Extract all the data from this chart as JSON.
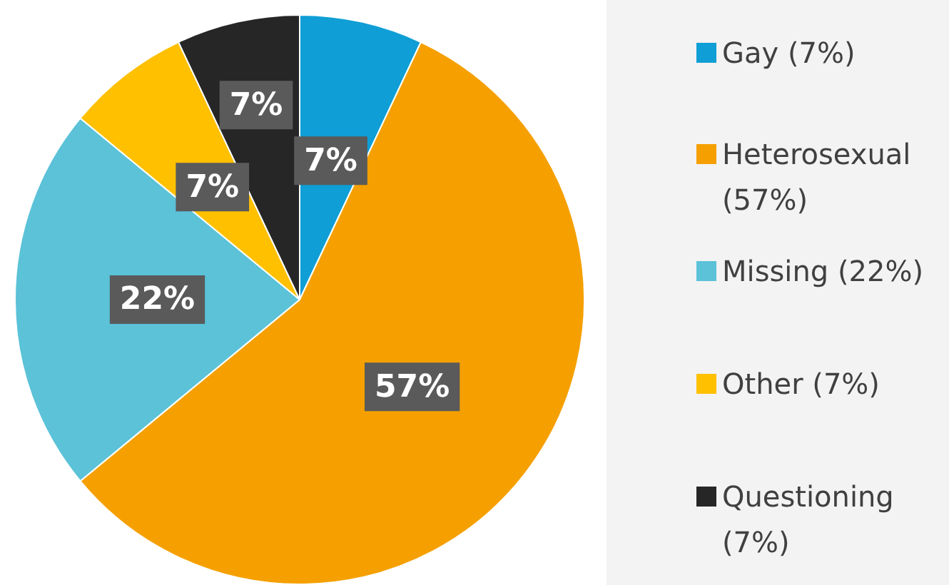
{
  "chart_data": {
    "type": "pie",
    "categories": [
      "Gay (7%)",
      "Heterosexual (57%)",
      "Missing (22%)",
      "Other (7%)",
      "Questioning (7%)"
    ],
    "values": [
      7,
      57,
      22,
      7,
      7
    ],
    "colors": [
      "#0f9ed5",
      "#f5a000",
      "#5bc2d8",
      "#ffc000",
      "#262626"
    ],
    "value_labels": [
      "7%",
      "57%",
      "22%",
      "7%",
      "7%"
    ],
    "legend": "right"
  }
}
